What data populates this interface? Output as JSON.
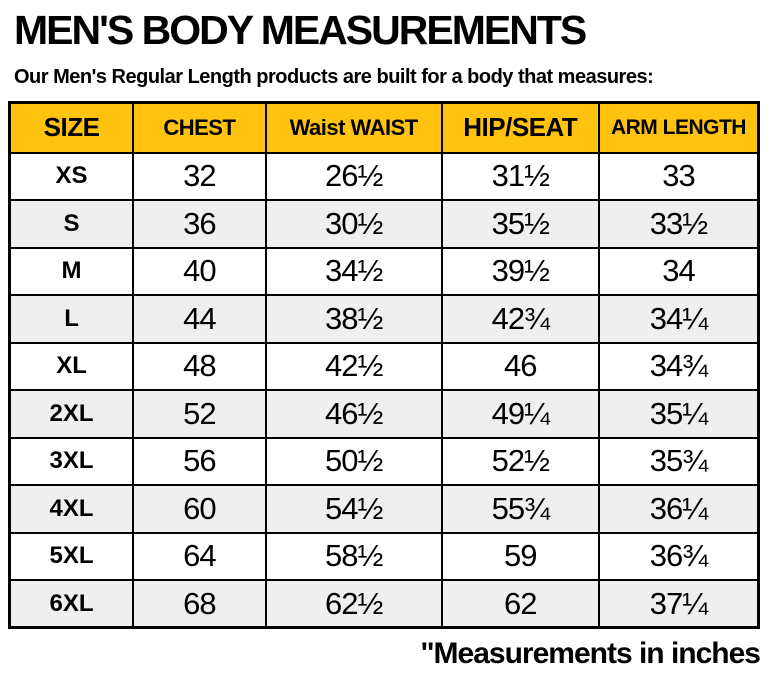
{
  "header": {
    "title": "MEN'S BODY MEASUREMENTS",
    "subtitle": "Our Men's Regular Length products are built for a body that measures:"
  },
  "footnote": "\"Measurements in inches",
  "colors": {
    "header_bg": "#FFC20E",
    "alt_row_bg": "#EFEFEF",
    "border": "#000000"
  },
  "chart_data": {
    "type": "table",
    "title": "MEN'S BODY MEASUREMENTS",
    "subtitle": "Our Men's Regular Length products are built for a body that measures:",
    "units": "inches",
    "columns": [
      "SIZE",
      "CHEST",
      "Waist WAIST",
      "HIP/SEAT",
      "ARM LENGTH"
    ],
    "rows": [
      [
        "XS",
        "32",
        "26½",
        "31½",
        "33"
      ],
      [
        "S",
        "36",
        "30½",
        "35½",
        "33½"
      ],
      [
        "M",
        "40",
        "34½",
        "39½",
        "34"
      ],
      [
        "L",
        "44",
        "38½",
        "42¾",
        "34¼"
      ],
      [
        "XL",
        "48",
        "42½",
        "46",
        "34¾"
      ],
      [
        "2XL",
        "52",
        "46½",
        "49¼",
        "35¼"
      ],
      [
        "3XL",
        "56",
        "50½",
        "52½",
        "35¾"
      ],
      [
        "4XL",
        "60",
        "54½",
        "55¾",
        "36¼"
      ],
      [
        "5XL",
        "64",
        "58½",
        "59",
        "36¾"
      ],
      [
        "6XL",
        "68",
        "62½",
        "62",
        "37¼"
      ]
    ],
    "layout": {
      "header_background": "#FFC20E",
      "alternating_row_background": "#EFEFEF",
      "grid": true
    }
  }
}
